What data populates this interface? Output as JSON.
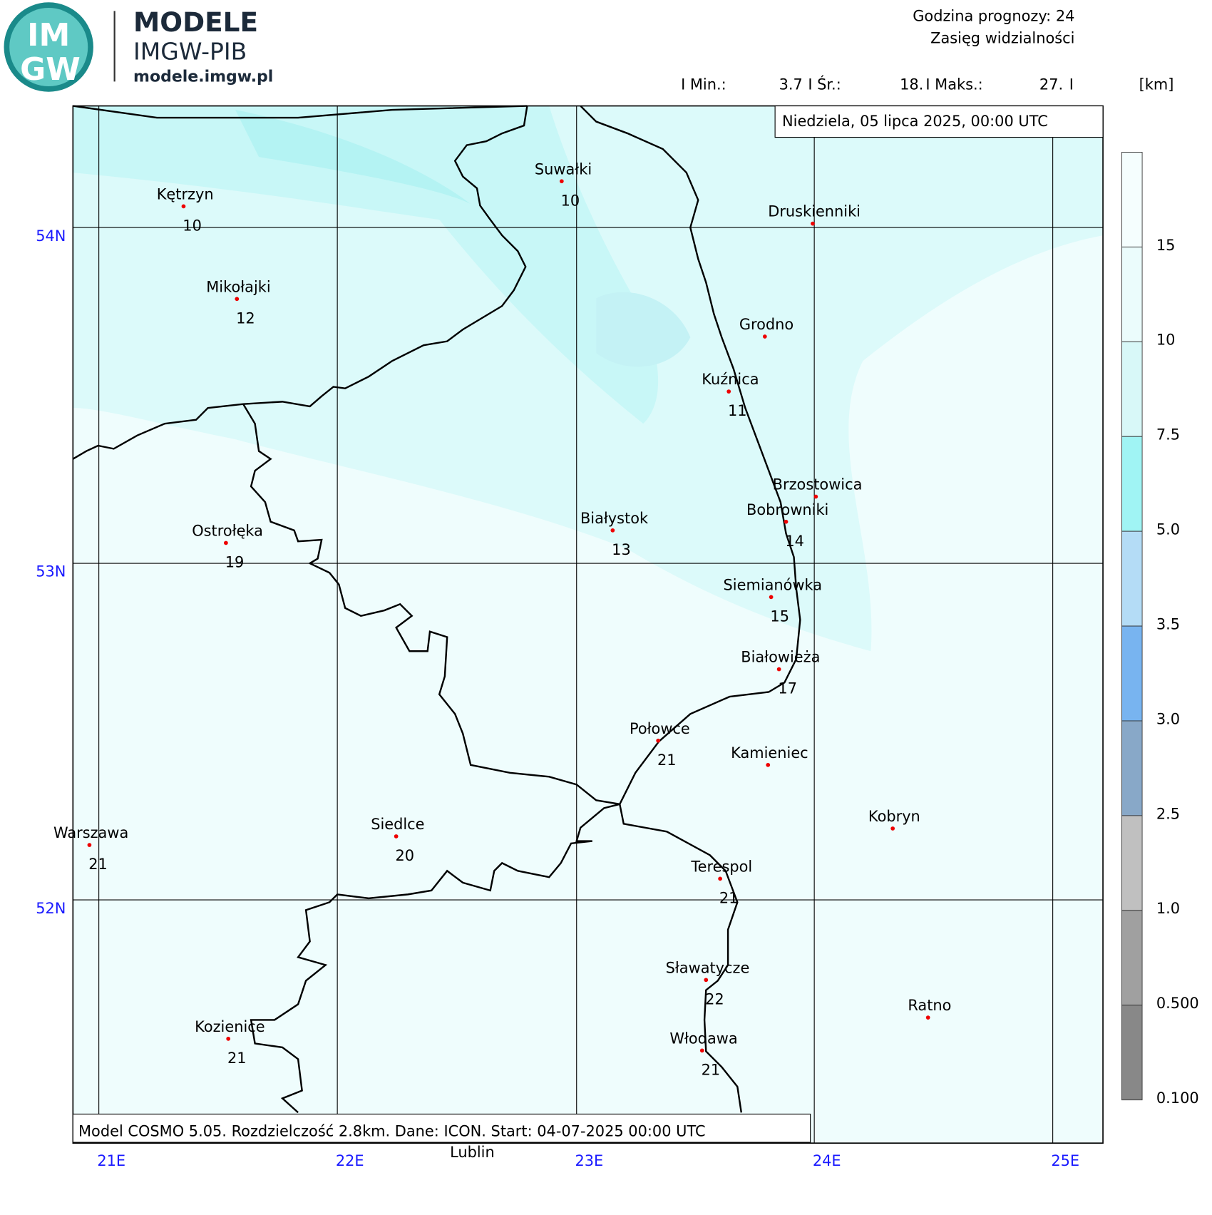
{
  "header": {
    "brand": "MODELE",
    "institute": "IMGW-PIB",
    "site": "modele.imgw.pl",
    "logo_top": "IM",
    "logo_bottom": "GW",
    "forecast_hour": "Godzina prognozy: 24",
    "parameter": "Zasięg widzialności",
    "stats": [
      "I Min.:",
      "3.7",
      "I Śr.:",
      "18.",
      "I Maks.:",
      "27.",
      "I",
      "[km]"
    ]
  },
  "date": "Niedziela, 05 lipca 2025, 00:00 UTC",
  "footer": "Model COSMO 5.05. Rozdzielczość 2.8km. Dane: ICON. Start: 04-07-2025 00:00 UTC",
  "longitudes": [
    "21E",
    "22E",
    "23E",
    "24E",
    "25E"
  ],
  "latitudes": [
    "54N",
    "53N",
    "52N"
  ],
  "legend": {
    "labels": [
      "15",
      "10",
      "7.5",
      "5.0",
      "3.5",
      "3.0",
      "2.5",
      "1.0",
      "0.500",
      "0.100"
    ]
  },
  "cities": [
    {
      "name": "Kętrzyn",
      "value": 10
    },
    {
      "name": "Suwałki",
      "value": 10
    },
    {
      "name": "Druskienniki"
    },
    {
      "name": "Mikołajki",
      "value": 12
    },
    {
      "name": "Grodno"
    },
    {
      "name": "Kuźnica",
      "value": 11
    },
    {
      "name": "Brzostowica"
    },
    {
      "name": "Bobrowniki",
      "value": 14
    },
    {
      "name": "Białystok",
      "value": 13
    },
    {
      "name": "Ostrołęka",
      "value": 19
    },
    {
      "name": "Siemianówka",
      "value": 15
    },
    {
      "name": "Białowieża",
      "value": 17
    },
    {
      "name": "Połowce",
      "value": 21
    },
    {
      "name": "Kamieniec"
    },
    {
      "name": "Kobryn"
    },
    {
      "name": "Warszawa",
      "value": 21
    },
    {
      "name": "Siedlce",
      "value": 20
    },
    {
      "name": "Terespol",
      "value": 21
    },
    {
      "name": "Sławatycze",
      "value": 22
    },
    {
      "name": "Ratno"
    },
    {
      "name": "Kozienice",
      "value": 21
    },
    {
      "name": "Włodawa",
      "value": 21
    },
    {
      "name": "Lublin"
    }
  ]
}
